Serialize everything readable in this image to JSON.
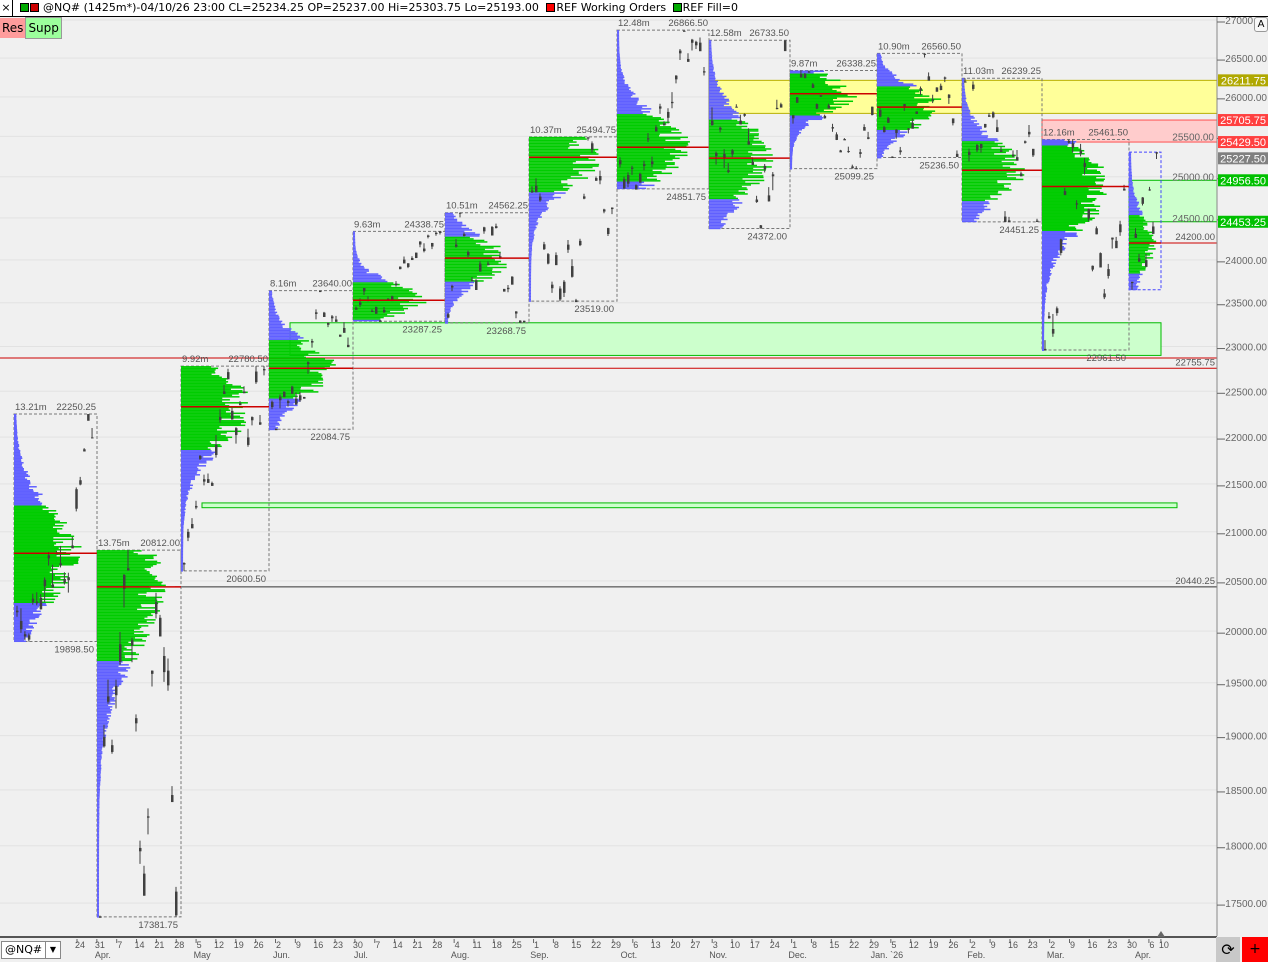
{
  "header": {
    "close_label": "×",
    "title": "@NQ# (1425m*)-04/10/26 23:00 CL=25234.25 OP=25237.00 Hi=25303.75 Lo=25193.00",
    "ref_orders": "REF Working Orders",
    "ref_fill": "REF Fill=0"
  },
  "buttons": {
    "res": "Res",
    "supp": "Supp",
    "auto": "A",
    "symbol": "@NQ#",
    "refresh": "⟳",
    "add": "+"
  },
  "colors": {
    "up_profile": "#00cc00",
    "out_profile": "#6060ff",
    "poc": "#cc0000",
    "candle": "#404040"
  },
  "chart_data": {
    "type": "candlestick-volume-profile",
    "scale": "log",
    "ylim": [
      17300,
      27100
    ],
    "y_ticks": [
      "27000.00",
      "26500.00",
      "26000.00",
      "25500.00",
      "25000.00",
      "24500.00",
      "24000.00",
      "23500.00",
      "23000.00",
      "22500.00",
      "22000.00",
      "21500.00",
      "21000.00",
      "20500.00",
      "20000.00",
      "19500.00",
      "19000.00",
      "18500.00",
      "18000.00",
      "17500.00"
    ],
    "x_day_ticks": [
      "24",
      "31",
      "7",
      "14",
      "21",
      "28",
      "5",
      "12",
      "19",
      "26",
      "2",
      "9",
      "16",
      "23",
      "30",
      "7",
      "14",
      "21",
      "28",
      "4",
      "11",
      "18",
      "25",
      "1",
      "8",
      "15",
      "22",
      "29",
      "6",
      "13",
      "20",
      "27",
      "3",
      "10",
      "17",
      "24",
      "1",
      "8",
      "15",
      "22",
      "29",
      "5",
      "12",
      "19",
      "26",
      "2",
      "9",
      "16",
      "23",
      "2",
      "9",
      "16",
      "23",
      "30",
      "6",
      "10"
    ],
    "x_month_ticks": [
      {
        "label": "Apr.",
        "week": 1
      },
      {
        "label": "May",
        "week": 6
      },
      {
        "label": "Jun.",
        "week": 10
      },
      {
        "label": "Jul.",
        "week": 14
      },
      {
        "label": "Aug.",
        "week": 19
      },
      {
        "label": "Sep.",
        "week": 23
      },
      {
        "label": "Oct.",
        "week": 27.5
      },
      {
        "label": "Nov.",
        "week": 32
      },
      {
        "label": "Dec.",
        "week": 36
      },
      {
        "label": "Jan. `26",
        "week": 40.5
      },
      {
        "label": "Feb.",
        "week": 45
      },
      {
        "label": "Mar.",
        "week": 49
      },
      {
        "label": "Apr.",
        "week": 53.4
      }
    ],
    "profiles": [
      {
        "month": "Mar",
        "volume": "13.21m",
        "high": 22250.25,
        "low": 19898.5,
        "poc": 20780,
        "high_label": "22250.25",
        "low_label": "19898.50",
        "x0": 14,
        "x1": 97
      },
      {
        "month": "Apr",
        "volume": "13.75m",
        "high": 20812,
        "low": 17381.75,
        "poc": 20440.25,
        "high_label": "20812.00",
        "low_label": "17381.75",
        "x0": 97,
        "x1": 181
      },
      {
        "month": "May",
        "volume": "9.92m",
        "high": 22780.5,
        "low": 20600.5,
        "poc": 22330,
        "high_label": "22780.50",
        "low_label": "20600.50",
        "x0": 181,
        "x1": 269
      },
      {
        "month": "Jun",
        "volume": "8.16m",
        "high": 23640,
        "low": 22084.75,
        "poc": 22755.75,
        "high_label": "23640.00",
        "low_label": "22084.75",
        "x0": 269,
        "x1": 353
      },
      {
        "month": "Jul",
        "volume": "9.63m",
        "high": 24338.75,
        "low": 23287.25,
        "poc": 23529,
        "high_label": "24338.75",
        "low_label": "23287.25",
        "x0": 353,
        "x1": 445
      },
      {
        "month": "Aug",
        "volume": "10.51m",
        "high": 24562.25,
        "low": 23268.75,
        "poc": 24020,
        "high_label": "24562.25",
        "low_label": "23268.75",
        "x0": 445,
        "x1": 529
      },
      {
        "month": "Sep",
        "volume": "10.37m",
        "high": 25494.75,
        "low": 23519,
        "poc": 25240,
        "high_label": "25494.75",
        "low_label": "23519.00",
        "x0": 529,
        "x1": 617
      },
      {
        "month": "Oct",
        "volume": "12.48m",
        "high": 26866.5,
        "low": 24851.75,
        "poc": 25364,
        "high_label": "26866.50",
        "low_label": "24851.75",
        "x0": 617,
        "x1": 709
      },
      {
        "month": "Nov",
        "volume": "12.58m",
        "high": 26733.5,
        "low": 24372,
        "poc": 25230,
        "high_label": "26733.50",
        "low_label": "24372.00",
        "x0": 709,
        "x1": 790
      },
      {
        "month": "Dec",
        "volume": "9.87m",
        "high": 26338.25,
        "low": 25099.25,
        "poc": 26040,
        "high_label": "26338.25",
        "low_label": "25099.25",
        "x0": 790,
        "x1": 877
      },
      {
        "month": "Jan",
        "volume": "10.90m",
        "high": 26560.5,
        "low": 25236.5,
        "poc": 25870,
        "high_label": "26560.50",
        "low_label": "25236.50",
        "x0": 877,
        "x1": 962
      },
      {
        "month": "Feb",
        "volume": "11.03m",
        "high": 26239.25,
        "low": 24451.25,
        "poc": 25080,
        "high_label": "26239.25",
        "low_label": "24451.25",
        "x0": 962,
        "x1": 1042
      },
      {
        "month": "Mar",
        "volume": "12.16m",
        "high": 25461.5,
        "low": 22961.5,
        "poc": 24880,
        "high_label": "25461.50",
        "low_label": "22961.50",
        "x0": 1042,
        "x1": 1129
      },
      {
        "month": "Apr",
        "volume": "",
        "high": 25303.75,
        "low": 23650,
        "poc": 24200,
        "high_label": "",
        "low_label": "",
        "x0": 1129,
        "x1": 1161
      }
    ],
    "levels": [
      {
        "label": "24200.00",
        "price": 24200
      },
      {
        "label": "22755.75",
        "price": 22755.75
      },
      {
        "label": "20440.25",
        "price": 20440.25
      }
    ],
    "zones": [
      {
        "type": "resistance",
        "top": 26211.75,
        "bottom": 25790,
        "color": "#ffff99",
        "x0": 709,
        "tag": "26211.75"
      },
      {
        "type": "resistance",
        "top": 25705.75,
        "bottom": 25429.5,
        "color": "#ffcccc",
        "x0": 1042,
        "tag": "25705.75",
        "tag2": "25429.50"
      },
      {
        "type": "support",
        "top": 24956.5,
        "bottom": 24453.25,
        "color": "#ccffcc",
        "x0": 1129,
        "tag": "24956.50",
        "tag2": "24453.25"
      },
      {
        "type": "support",
        "top": 23270,
        "bottom": 22900,
        "color": "#ccffcc",
        "x0": 290
      },
      {
        "type": "support",
        "top": 21300,
        "bottom": 21250,
        "color": "#ccffcc",
        "x0": 202
      }
    ],
    "last_price": "25227.50"
  }
}
